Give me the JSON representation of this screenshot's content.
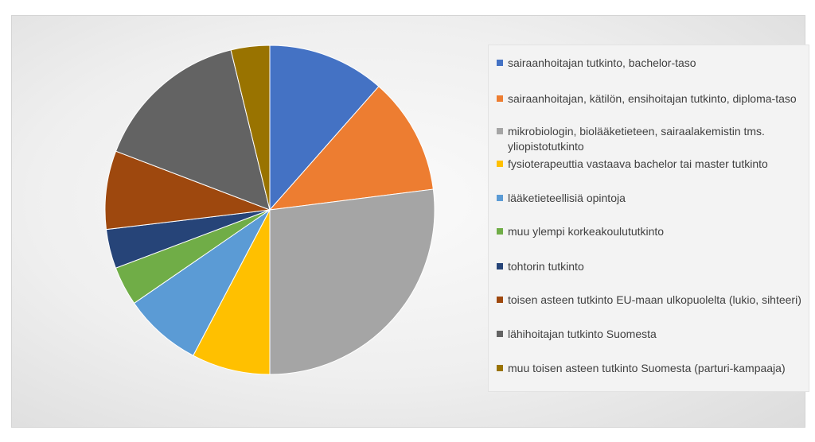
{
  "chart_data": {
    "type": "pie",
    "legend_position": "right",
    "categories": [
      "sairaanhoitajan tutkinto, bachelor-taso",
      "sairaanhoitajan, kätilön, ensihoitajan tutkinto, diploma-taso",
      "mikrobiologin, biolääketieteen, sairaalakemistin tms. yliopistotutkinto",
      "fysioterapeuttia vastaava bachelor tai master tutkinto",
      "lääketieteellisiä opintoja",
      "muu ylempi korkeakoulututkinto",
      "tohtorin tutkinto",
      "toisen asteen tutkinto EU-maan ulkopuolelta (lukio, sihteeri)",
      "lähihoitajan tutkinto Suomesta",
      "muu toisen asteen tutkinto Suomesta (parturi-kampaaja)"
    ],
    "values": [
      11.5,
      11.5,
      27,
      7.7,
      7.7,
      3.85,
      3.85,
      7.7,
      15.4,
      3.8
    ],
    "colors": [
      "#4472C4",
      "#ED7D31",
      "#A5A5A5",
      "#FFC000",
      "#5B9BD5",
      "#70AD47",
      "#264478",
      "#9E480E",
      "#636363",
      "#997300"
    ]
  }
}
